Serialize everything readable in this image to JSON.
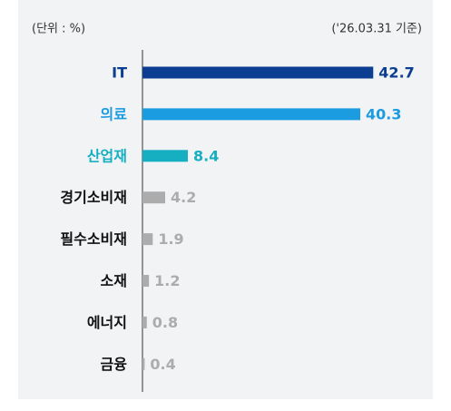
{
  "chart_data": {
    "type": "barh",
    "unit_note": "(단위 : %)",
    "date_note": "('26.03.31 기준)",
    "categories": [
      "IT",
      "의료",
      "산업재",
      "경기소비재",
      "필수소비재",
      "소재",
      "에너지",
      "금융"
    ],
    "values": [
      42.7,
      40.3,
      8.4,
      4.2,
      1.9,
      1.2,
      0.8,
      0.4
    ],
    "colors": [
      "#0b3e91",
      "#1b9be0",
      "#16afc2",
      "#acacac",
      "#acacac",
      "#acacac",
      "#acacac",
      "#acacac"
    ],
    "label_colors": [
      "#0b3e91",
      "#1b9be0",
      "#16afc2",
      "#111111",
      "#111111",
      "#111111",
      "#111111",
      "#111111"
    ],
    "xlim": [
      0,
      45
    ]
  }
}
